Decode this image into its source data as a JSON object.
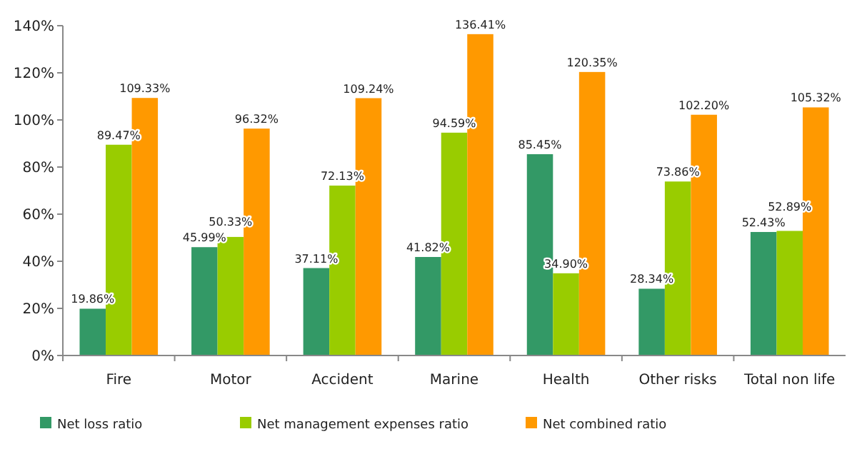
{
  "chart_data": {
    "type": "bar",
    "categories": [
      "Fire",
      "Motor",
      "Accident",
      "Marine",
      "Health",
      "Other risks",
      "Total non life"
    ],
    "series": [
      {
        "name": "Net loss ratio",
        "color": "#339966",
        "values": [
          19.86,
          45.99,
          37.11,
          41.82,
          85.45,
          28.34,
          52.43
        ],
        "value_labels": [
          "19.86%",
          "45.99%",
          "37.11%",
          "41.82%",
          "85.45%",
          "28.34%",
          "52.43%"
        ]
      },
      {
        "name": "Net management expenses ratio",
        "color": "#99cc00",
        "values": [
          89.47,
          50.33,
          72.13,
          94.59,
          34.9,
          73.86,
          52.89
        ],
        "value_labels": [
          "89.47%",
          "50.33%",
          "72.13%",
          "94.59%",
          "34.90%",
          "73.86%",
          "52.89%"
        ]
      },
      {
        "name": "Net combined ratio",
        "color": "#ff9900",
        "values": [
          109.33,
          96.32,
          109.24,
          136.41,
          120.35,
          102.2,
          105.32
        ],
        "value_labels": [
          "109.33%",
          "96.32%",
          "109.24%",
          "136.41%",
          "120.35%",
          "102.20%",
          "105.32%"
        ]
      }
    ],
    "ylim": [
      0,
      140
    ],
    "yticks": [
      {
        "value": 0,
        "label": "0%"
      },
      {
        "value": 20,
        "label": "20%"
      },
      {
        "value": 40,
        "label": "40%"
      },
      {
        "value": 60,
        "label": "60%"
      },
      {
        "value": 80,
        "label": "80%"
      },
      {
        "value": 100,
        "label": "100%"
      },
      {
        "value": 120,
        "label": "120%"
      },
      {
        "value": 140,
        "label": "140%"
      }
    ],
    "legend": "bottom"
  }
}
